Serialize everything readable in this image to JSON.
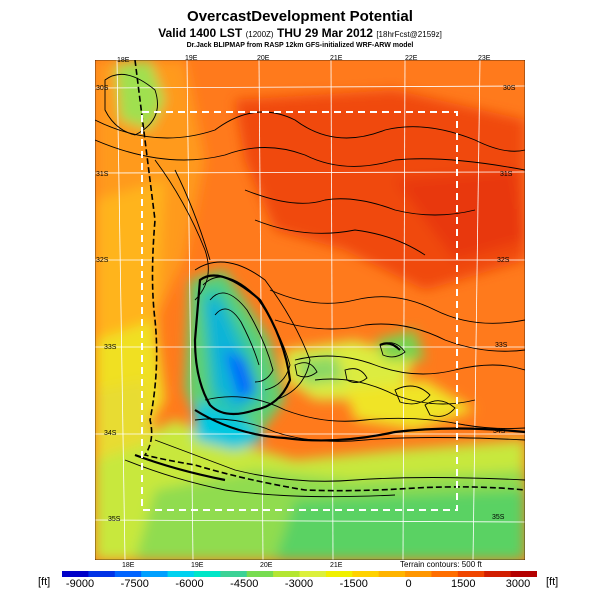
{
  "title": "OvercastDevelopment Potential",
  "subtitle_main": "Valid 1400 LST",
  "subtitle_small1": "(1200Z)",
  "subtitle_date": "THU 29 Mar 2012",
  "subtitle_small2": "[18hrFcst@2159z]",
  "credit": "Dr.Jack BLIPMAP from RASP 12km GFS-initialized WRF-ARW model",
  "terrain_note": "Terrain contours: 500 ft",
  "colorbar": {
    "unit_left": "[ft]",
    "unit_right": "[ft]",
    "ticks": [
      "-9000",
      "-7500",
      "-6000",
      "-4500",
      "-3000",
      "-1500",
      "0",
      "1500",
      "3000"
    ],
    "colors": [
      "#0000c8",
      "#0032e6",
      "#0064ff",
      "#00a0ff",
      "#00d2f0",
      "#00e6c8",
      "#3cd296",
      "#78dc50",
      "#b4e632",
      "#dcf03c",
      "#f0f000",
      "#ffd200",
      "#ffb400",
      "#ff9600",
      "#ff6e00",
      "#f04600",
      "#d21e00",
      "#b40000"
    ]
  },
  "map_labels": {
    "lon_top": [
      "18E",
      "19E",
      "20E",
      "21E",
      "22E",
      "23E"
    ],
    "lon_bottom": [
      "18E",
      "19E",
      "20E",
      "21E"
    ],
    "lat_left": [
      "30S",
      "31S",
      "32S",
      "33S",
      "34S",
      "35S"
    ],
    "lat_right": [
      "30S",
      "31S",
      "32S",
      "33S",
      "34S",
      "35S"
    ]
  }
}
